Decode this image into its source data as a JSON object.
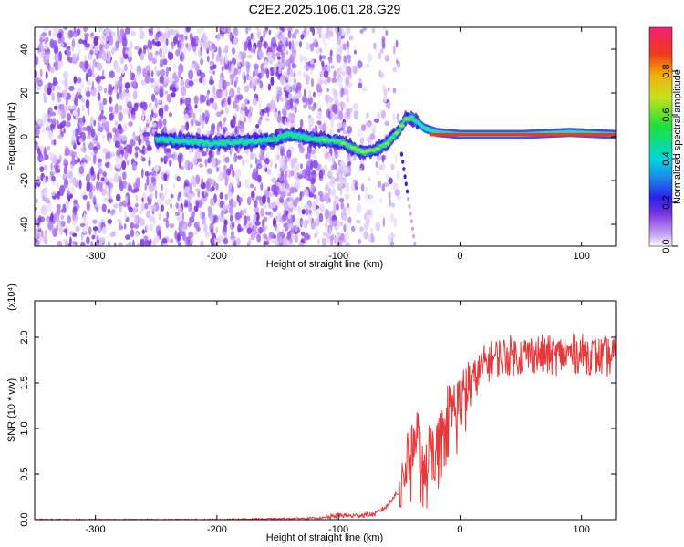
{
  "title": "C2E2.2025.106.01.28.G29",
  "chart_data": [
    {
      "type": "heatmap",
      "xlabel": "Height of straight line (km)",
      "ylabel": "Frequency (Hz)",
      "xlim": [
        -350,
        128
      ],
      "ylim": [
        -50,
        50
      ],
      "x_ticks": [
        -300,
        -200,
        -100,
        0,
        100
      ],
      "y_ticks": [
        -40,
        -20,
        0,
        20,
        40
      ],
      "colorbar": {
        "label": "Normalized spectral amplitude",
        "range": [
          0.0,
          1.0
        ],
        "ticks": [
          0.0,
          0.2,
          0.4,
          0.6,
          0.8
        ]
      },
      "ridge": {
        "x": [
          -250,
          -230,
          -200,
          -180,
          -160,
          -140,
          -120,
          -100,
          -80,
          -70,
          -60,
          -50,
          -45,
          -40,
          -30,
          -20,
          0,
          50,
          90,
          128
        ],
        "y": [
          -1,
          -2,
          -3,
          -2,
          -2,
          1,
          -1,
          -2,
          -7,
          -6,
          -3,
          3,
          8,
          9,
          4,
          2,
          1,
          1,
          2,
          1
        ]
      }
    },
    {
      "type": "line",
      "xlabel": "Height of straight line (km)",
      "ylabel": "SNR (10 * v/v)",
      "y_multiplier": "(x10⁴)",
      "xlim": [
        -350,
        128
      ],
      "ylim": [
        0.0,
        2.4
      ],
      "x_ticks": [
        -300,
        -200,
        -100,
        0,
        100
      ],
      "y_ticks": [
        0.0,
        0.5,
        1.0,
        1.5,
        2.0
      ],
      "series": [
        {
          "color": "#e8383a",
          "x": [
            -350,
            -300,
            -200,
            -150,
            -110,
            -100,
            -90,
            -80,
            -70,
            -60,
            -55,
            -50,
            -45,
            -40,
            -35,
            -30,
            -25,
            -20,
            -15,
            -10,
            -5,
            0,
            10,
            20,
            30,
            40,
            50,
            60,
            70,
            80,
            90,
            100,
            110,
            120,
            128
          ],
          "y": [
            0.0,
            0.0,
            0.0,
            0.01,
            0.02,
            0.05,
            0.04,
            0.05,
            0.06,
            0.15,
            0.25,
            0.3,
            0.55,
            0.8,
            0.95,
            0.6,
            0.8,
            0.7,
            1.0,
            1.2,
            1.25,
            1.3,
            1.5,
            1.7,
            1.78,
            1.8,
            1.8,
            1.82,
            1.8,
            1.8,
            1.82,
            1.82,
            1.8,
            1.78,
            1.8
          ]
        }
      ]
    }
  ]
}
